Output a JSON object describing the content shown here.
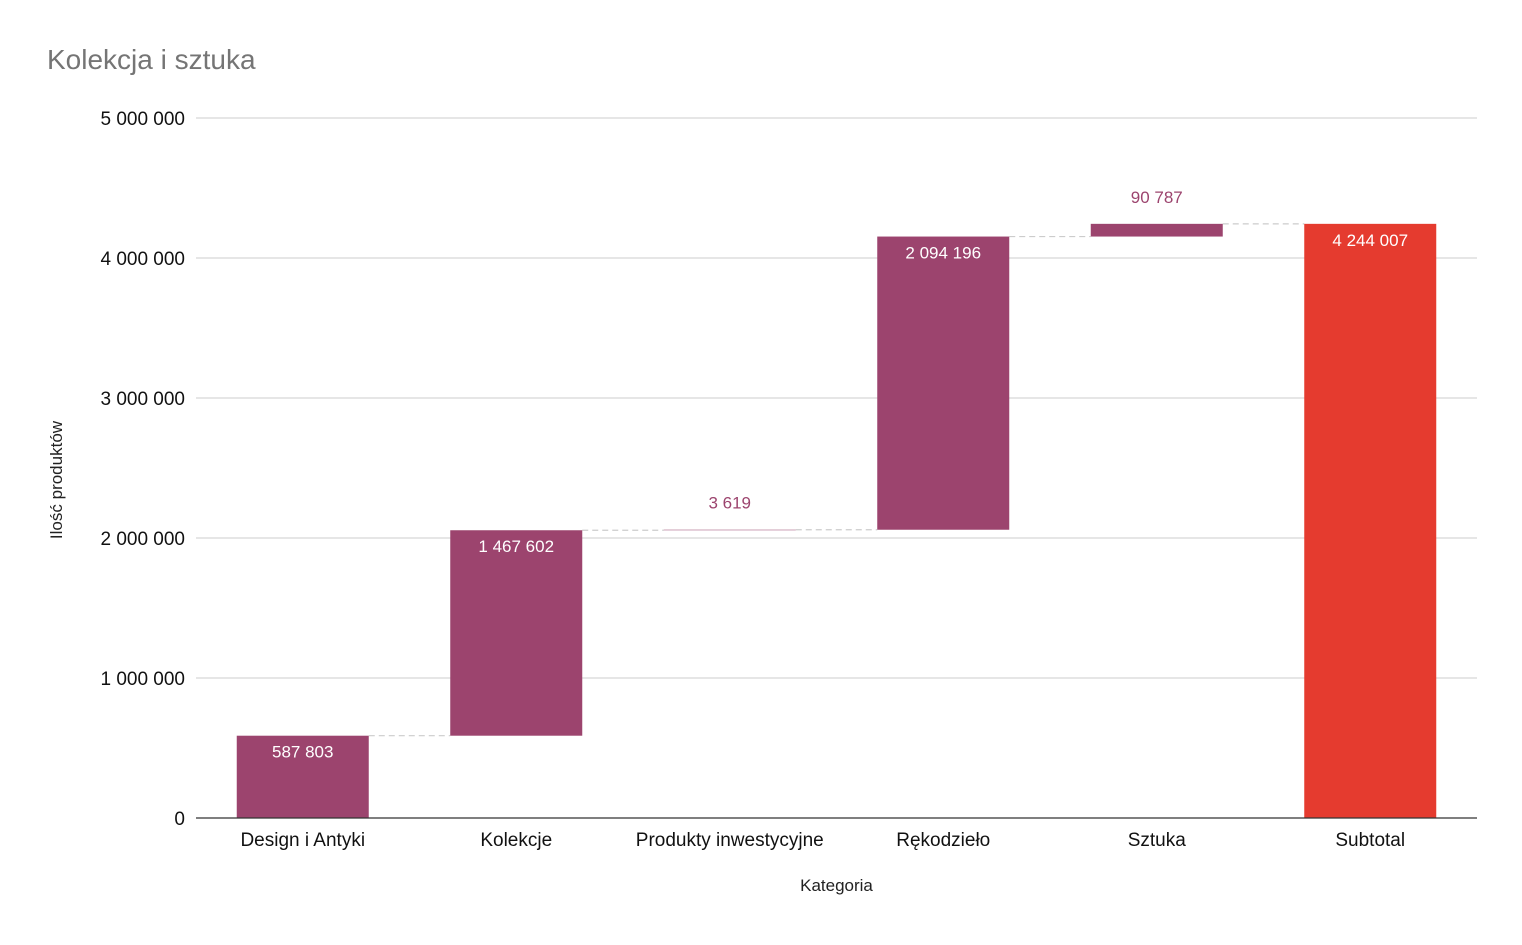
{
  "chart_data": {
    "type": "waterfall",
    "title": "Kolekcja i sztuka",
    "xlabel": "Kategoria",
    "ylabel": "Ilość produktów",
    "ylim": [
      0,
      5000000
    ],
    "yticks": [
      0,
      1000000,
      2000000,
      3000000,
      4000000,
      5000000
    ],
    "ytick_labels": [
      "0",
      "1 000 000",
      "2 000 000",
      "3 000 000",
      "4 000 000",
      "5 000 000"
    ],
    "grid": true,
    "categories": [
      "Design i Antyki",
      "Kolekcje",
      "Produkty inwestycyjne",
      "Rękodzieło",
      "Sztuka",
      "Subtotal"
    ],
    "values": [
      587803,
      1467602,
      3619,
      2094196,
      90787,
      4244007
    ],
    "value_labels": [
      "587 803",
      "1 467 602",
      "3 619",
      "2 094 196",
      "90 787",
      "4 244 007"
    ],
    "is_total": [
      false,
      false,
      false,
      false,
      false,
      true
    ],
    "colors": {
      "increase": "#9c446e",
      "total": "#e53b2f",
      "axis": "#333333",
      "grid": "#cccccc",
      "connector": "#cccccc",
      "title": "#757575"
    }
  }
}
